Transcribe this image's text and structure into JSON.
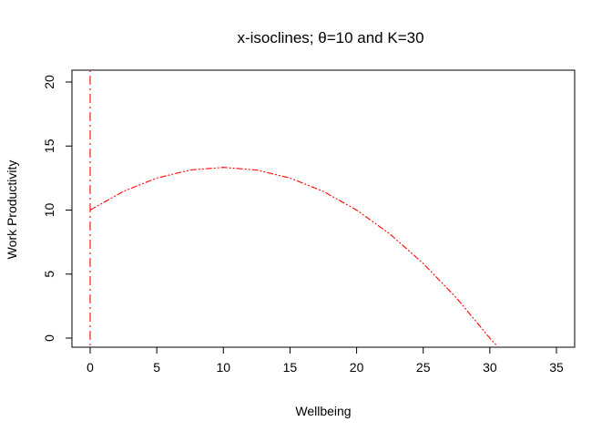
{
  "chart_data": {
    "type": "line",
    "title": "x-isoclines; θ=10  and  K=30",
    "xlabel": "Wellbeing",
    "ylabel": "Work Productivity",
    "xlim": [
      0,
      35
    ],
    "ylim": [
      0,
      20
    ],
    "x_ticks": [
      0,
      5,
      10,
      15,
      20,
      25,
      30,
      35
    ],
    "y_ticks": [
      0,
      5,
      10,
      15,
      20
    ],
    "grid": false,
    "legend": "none",
    "series": [
      {
        "kind": "vertical-line",
        "x": 0,
        "color": "#ff0000",
        "line_style": "dotdash"
      },
      {
        "kind": "curve",
        "color": "#ff0000",
        "line_style": "dash-dot-dot",
        "x": [
          0,
          2.5,
          5,
          7.5,
          10,
          12.5,
          15,
          17.5,
          20,
          22.5,
          25,
          27.5,
          30,
          30.5
        ],
        "y": [
          10,
          11.46,
          12.5,
          13.13,
          13.33,
          13.13,
          12.5,
          11.46,
          10,
          8.13,
          5.83,
          3.13,
          0,
          -0.57
        ]
      }
    ]
  }
}
